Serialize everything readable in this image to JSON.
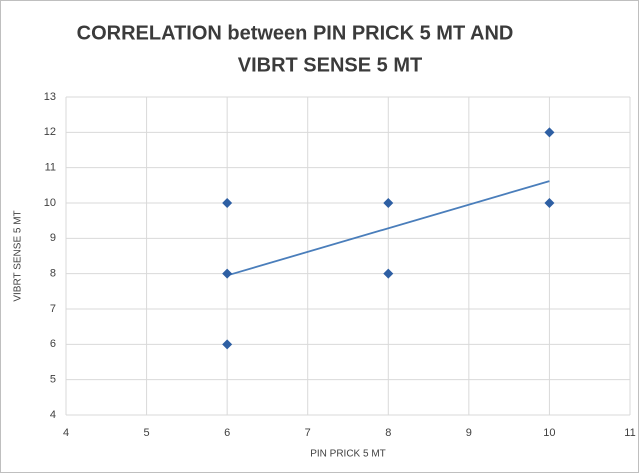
{
  "chart_data": {
    "type": "scatter",
    "title": [
      "CORRELATION between PIN PRICK 5 MT AND",
      "VIBRT SENSE 5 MT"
    ],
    "x_label": "PIN PRICK 5 MT",
    "y_label": "VIBRT SENSE 5 MT",
    "x": [
      6,
      6,
      6,
      8,
      8,
      10,
      10
    ],
    "values": [
      6,
      8,
      10,
      8,
      10,
      10,
      12
    ],
    "color": "#2e5fa3",
    "trendline": {
      "x": [
        6,
        10
      ],
      "y": [
        7.95,
        10.62
      ],
      "color": "#4a7ebb"
    },
    "xlim": [
      4,
      11
    ],
    "xticks": [
      4,
      5,
      6,
      7,
      8,
      9,
      10,
      11
    ],
    "ylim": [
      4,
      13
    ],
    "yticks": [
      4,
      5,
      6,
      7,
      8,
      9,
      10,
      11,
      12,
      13
    ],
    "grid": true
  }
}
